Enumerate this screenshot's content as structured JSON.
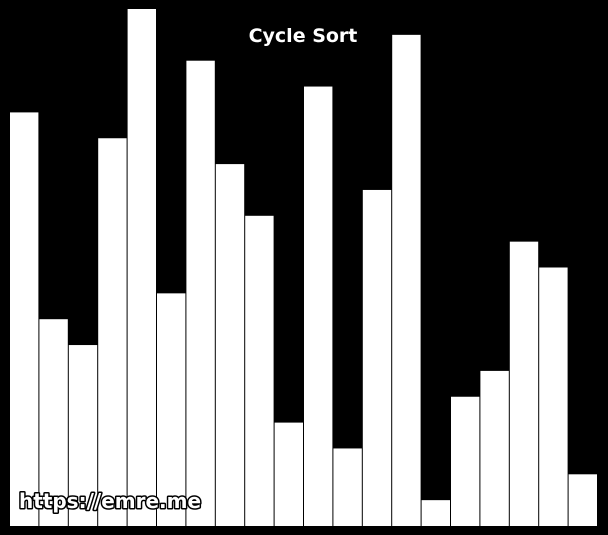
{
  "chart_data": {
    "type": "bar",
    "title": "Cycle Sort",
    "values": [
      16,
      8,
      7,
      15,
      20,
      9,
      18,
      14,
      12,
      4,
      17,
      3,
      13,
      19,
      1,
      5,
      6,
      11,
      10,
      2
    ],
    "ylim": [
      0,
      20
    ],
    "grid": false,
    "legend": "none",
    "bar_color": "#ffffff",
    "background_color": "#000000"
  },
  "watermark": {
    "text": "https://emre.me",
    "fill_color": "#ffffff",
    "outline_color": "#000000"
  }
}
